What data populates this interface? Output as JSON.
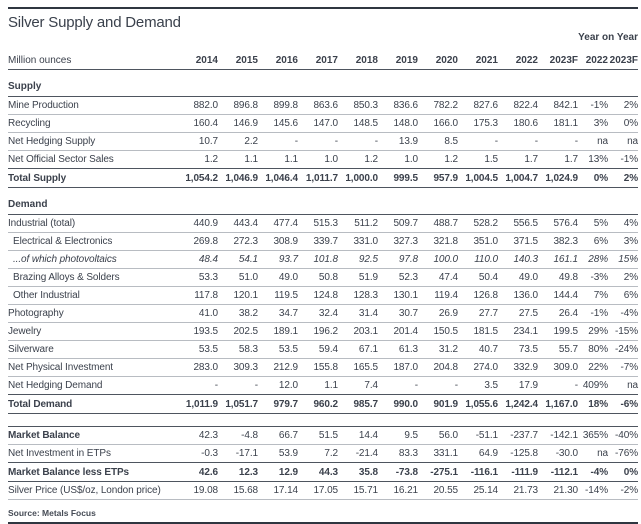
{
  "colors": {
    "text": "#3b414c",
    "line_light": "#b8bcc2",
    "line_dark": "#4e555f",
    "top_bottom_rule": "#2f3640"
  },
  "header": {
    "title": "Silver Supply and Demand",
    "year_on_year_label": "Year on Year",
    "unit_label": "Million ounces",
    "year_columns": [
      "2014",
      "2015",
      "2016",
      "2017",
      "2018",
      "2019",
      "2020",
      "2021",
      "2022",
      "2023F"
    ],
    "yoy_columns": [
      "2022",
      "2023F"
    ]
  },
  "table": {
    "sections": [
      {
        "name": "Supply",
        "rows": [
          {
            "label": "Mine Production",
            "style": "normal",
            "sep": "light",
            "values": [
              "882.0",
              "896.8",
              "899.8",
              "863.6",
              "850.3",
              "836.6",
              "782.2",
              "827.6",
              "822.4",
              "842.1"
            ],
            "yoy": [
              "-1%",
              "2%"
            ]
          },
          {
            "label": "Recycling",
            "style": "normal",
            "sep": "light",
            "values": [
              "160.4",
              "146.9",
              "145.6",
              "147.0",
              "148.5",
              "148.0",
              "166.0",
              "175.3",
              "180.6",
              "181.1"
            ],
            "yoy": [
              "3%",
              "0%"
            ]
          },
          {
            "label": "Net Hedging Supply",
            "style": "normal",
            "sep": "light",
            "values": [
              "10.7",
              "2.2",
              "-",
              "-",
              "-",
              "13.9",
              "8.5",
              "-",
              "-",
              "-"
            ],
            "yoy": [
              "na",
              "na"
            ]
          },
          {
            "label": "Net Official Sector Sales",
            "style": "normal",
            "sep": "dark",
            "values": [
              "1.2",
              "1.1",
              "1.1",
              "1.0",
              "1.2",
              "1.0",
              "1.2",
              "1.5",
              "1.7",
              "1.7"
            ],
            "yoy": [
              "13%",
              "-1%"
            ]
          },
          {
            "label": "Total Supply",
            "style": "total",
            "sep": "dark",
            "values": [
              "1,054.2",
              "1,046.9",
              "1,046.4",
              "1,011.7",
              "1,000.0",
              "999.5",
              "957.9",
              "1,004.5",
              "1,004.7",
              "1,024.9"
            ],
            "yoy": [
              "0%",
              "2%"
            ]
          }
        ]
      },
      {
        "name": "Demand",
        "rows": [
          {
            "label": "Industrial (total)",
            "style": "normal",
            "sep": "light",
            "values": [
              "440.9",
              "443.4",
              "477.4",
              "515.3",
              "511.2",
              "509.7",
              "488.7",
              "528.2",
              "556.5",
              "576.4"
            ],
            "yoy": [
              "5%",
              "4%"
            ]
          },
          {
            "label": "Electrical & Electronics",
            "style": "sub",
            "sep": "light",
            "values": [
              "269.8",
              "272.3",
              "308.9",
              "339.7",
              "331.0",
              "327.3",
              "321.8",
              "351.0",
              "371.5",
              "382.3"
            ],
            "yoy": [
              "6%",
              "3%"
            ]
          },
          {
            "label": "...of which photovoltaics",
            "style": "sub-italic",
            "sep": "light",
            "values": [
              "48.4",
              "54.1",
              "93.7",
              "101.8",
              "92.5",
              "97.8",
              "100.0",
              "110.0",
              "140.3",
              "161.1"
            ],
            "yoy": [
              "28%",
              "15%"
            ]
          },
          {
            "label": "Brazing Alloys & Solders",
            "style": "sub",
            "sep": "light",
            "values": [
              "53.3",
              "51.0",
              "49.0",
              "50.8",
              "51.9",
              "52.3",
              "47.4",
              "50.4",
              "49.0",
              "49.8"
            ],
            "yoy": [
              "-3%",
              "2%"
            ]
          },
          {
            "label": "Other Industrial",
            "style": "sub",
            "sep": "light",
            "values": [
              "117.8",
              "120.1",
              "119.5",
              "124.8",
              "128.3",
              "130.1",
              "119.4",
              "126.8",
              "136.0",
              "144.4"
            ],
            "yoy": [
              "7%",
              "6%"
            ]
          },
          {
            "label": "Photography",
            "style": "normal",
            "sep": "light",
            "values": [
              "41.0",
              "38.2",
              "34.7",
              "32.4",
              "31.4",
              "30.7",
              "26.9",
              "27.7",
              "27.5",
              "26.4"
            ],
            "yoy": [
              "-1%",
              "-4%"
            ]
          },
          {
            "label": "Jewelry",
            "style": "normal",
            "sep": "light",
            "values": [
              "193.5",
              "202.5",
              "189.1",
              "196.2",
              "203.1",
              "201.4",
              "150.5",
              "181.5",
              "234.1",
              "199.5"
            ],
            "yoy": [
              "29%",
              "-15%"
            ]
          },
          {
            "label": "Silverware",
            "style": "normal",
            "sep": "light",
            "values": [
              "53.5",
              "58.3",
              "53.5",
              "59.4",
              "67.1",
              "61.3",
              "31.2",
              "40.7",
              "73.5",
              "55.7"
            ],
            "yoy": [
              "80%",
              "-24%"
            ]
          },
          {
            "label": "Net Physical Investment",
            "style": "normal",
            "sep": "light",
            "values": [
              "283.0",
              "309.3",
              "212.9",
              "155.8",
              "165.5",
              "187.0",
              "204.8",
              "274.0",
              "332.9",
              "309.0"
            ],
            "yoy": [
              "22%",
              "-7%"
            ]
          },
          {
            "label": "Net Hedging Demand",
            "style": "normal",
            "sep": "dark",
            "values": [
              "-",
              "-",
              "12.0",
              "1.1",
              "7.4",
              "-",
              "-",
              "3.5",
              "17.9",
              "-"
            ],
            "yoy": [
              "409%",
              "na"
            ]
          },
          {
            "label": "Total Demand",
            "style": "total",
            "sep": "dark",
            "values": [
              "1,011.9",
              "1,051.7",
              "979.7",
              "960.2",
              "985.7",
              "990.0",
              "901.9",
              "1,055.6",
              "1,242.4",
              "1,167.0"
            ],
            "yoy": [
              "18%",
              "-6%"
            ]
          }
        ]
      },
      {
        "name": null,
        "gap_before": true,
        "rows": [
          {
            "label": "Market Balance",
            "style": "bold-label",
            "sep": "light",
            "top": "dark",
            "values": [
              "42.3",
              "-4.8",
              "66.7",
              "51.5",
              "14.4",
              "9.5",
              "56.0",
              "-51.1",
              "-237.7",
              "-142.1"
            ],
            "yoy": [
              "365%",
              "-40%"
            ]
          },
          {
            "label": "Net Investment in ETPs",
            "style": "normal",
            "sep": "dark",
            "values": [
              "-0.3",
              "-17.1",
              "53.9",
              "7.2",
              "-21.4",
              "83.3",
              "331.1",
              "64.9",
              "-125.8",
              "-30.0"
            ],
            "yoy": [
              "na",
              "-76%"
            ]
          },
          {
            "label": "Market Balance less ETPs",
            "style": "bold",
            "sep": "dark",
            "values": [
              "42.6",
              "12.3",
              "12.9",
              "44.3",
              "35.8",
              "-73.8",
              "-275.1",
              "-116.1",
              "-111.9",
              "-112.1"
            ],
            "yoy": [
              "-4%",
              "0%"
            ]
          },
          {
            "label": "Silver Price (US$/oz, London price)",
            "style": "normal",
            "sep": "light",
            "values": [
              "19.08",
              "15.68",
              "17.14",
              "17.05",
              "15.71",
              "16.21",
              "20.55",
              "25.14",
              "21.73",
              "21.30"
            ],
            "yoy": [
              "-14%",
              "-2%"
            ]
          }
        ]
      }
    ]
  },
  "footer": {
    "source": "Source: Metals Focus"
  }
}
